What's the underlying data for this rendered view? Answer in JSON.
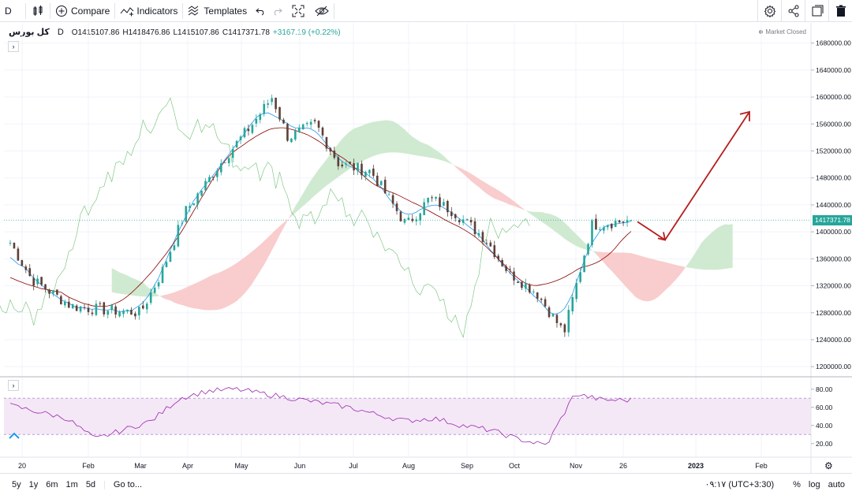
{
  "toolbar": {
    "interval": "D",
    "compare_label": "Compare",
    "indicators_label": "Indicators",
    "templates_label": "Templates"
  },
  "legend": {
    "symbol": "کل بورس",
    "period": "D",
    "open": "O1415107.86",
    "high": "H1418476.86",
    "low": "L1415107.86",
    "close": "C1417371.78",
    "change": "+3167.19 (+0.22%)",
    "market_status": "Market Closed"
  },
  "colors": {
    "up": "#26a69a",
    "down": "#5d4037",
    "cloud_bull": "#c8e6c9",
    "cloud_bear": "#f8c4c4",
    "tenkan": "#2196f3",
    "kijun": "#8b0000",
    "chikou": "#4caf50",
    "rsi_line": "#9c27b0",
    "arrow": "#b71c1c"
  },
  "chart_data": [
    {
      "type": "candlestick",
      "indicator": "Ichimoku Cloud",
      "x": [
        "2022-01-01",
        "2022-01-15",
        "2022-02-01",
        "2022-02-15",
        "2022-03-01",
        "2022-03-15",
        "2022-04-01",
        "2022-04-15",
        "2022-05-01",
        "2022-05-15",
        "2022-06-01",
        "2022-06-15",
        "2022-07-01",
        "2022-07-15",
        "2022-08-01",
        "2022-08-15",
        "2022-09-01",
        "2022-09-15",
        "2022-10-01",
        "2022-10-15",
        "2022-11-01",
        "2022-11-15",
        "2022-11-26"
      ],
      "close": [
        1400000,
        1330000,
        1290000,
        1285000,
        1280000,
        1340000,
        1430000,
        1510000,
        1560000,
        1600000,
        1540000,
        1560000,
        1500000,
        1490000,
        1410000,
        1450000,
        1430000,
        1390000,
        1340000,
        1310000,
        1250000,
        1410000,
        1417371.78
      ],
      "last_value": 1417371.78,
      "y_ticks": [
        "1680000.00",
        "1640000.00",
        "1600000.00",
        "1560000.00",
        "1520000.00",
        "1480000.00",
        "1440000.00",
        "1400000.00",
        "1360000.00",
        "1320000.00",
        "1280000.00",
        "1240000.00",
        "1200000.00"
      ],
      "ylim": [
        1185000,
        1710000
      ],
      "x_ticks": [
        "20",
        "Feb",
        "Mar",
        "Apr",
        "May",
        "Jun",
        "Jul",
        "Aug",
        "Sep",
        "Oct",
        "Nov",
        "26",
        "2023",
        "Feb"
      ],
      "annotation": "arrow: dip then rise toward ~1580000 by Feb 2023"
    },
    {
      "type": "line",
      "indicator": "RSI",
      "y_ticks": [
        "80.00",
        "60.00",
        "40.00",
        "20.00"
      ],
      "ylim": [
        5,
        92
      ],
      "band": [
        30,
        70
      ],
      "values": [
        62,
        55,
        48,
        25,
        35,
        45,
        70,
        78,
        80,
        75,
        70,
        65,
        60,
        52,
        45,
        48,
        40,
        35,
        25,
        18,
        75,
        68,
        68
      ]
    }
  ],
  "bottombar": {
    "ranges": [
      "5y",
      "1y",
      "6m",
      "1m",
      "5d"
    ],
    "goto_label": "Go to...",
    "clock": "۰۹:۱۷ (UTC+3:30)",
    "percent_label": "%",
    "log_label": "log",
    "auto_label": "auto"
  }
}
